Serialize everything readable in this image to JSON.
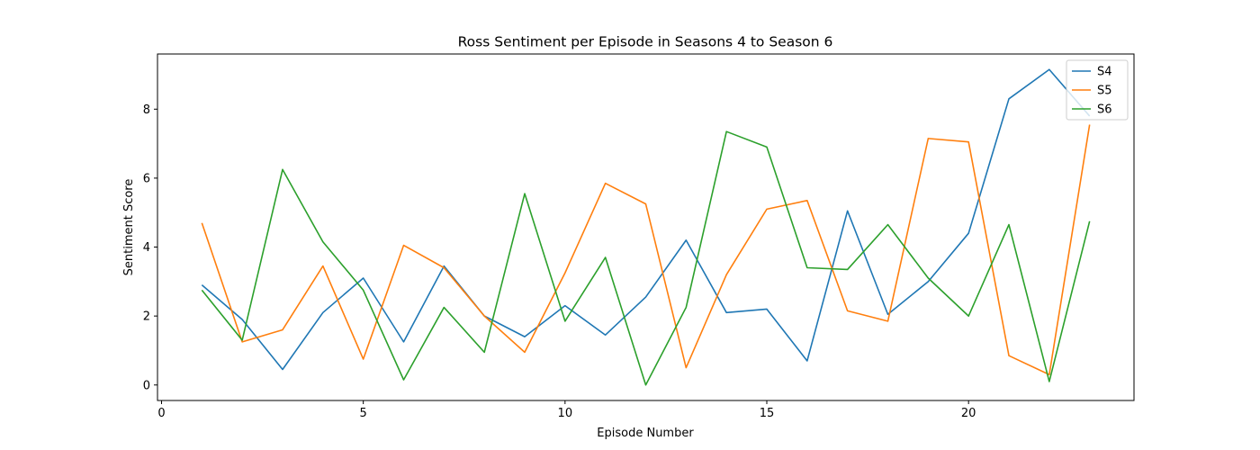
{
  "chart_data": {
    "type": "line",
    "title": "Ross Sentiment per Episode in Seasons 4 to Season 6",
    "xlabel": "Episode Number",
    "ylabel": "Sentiment Score",
    "xlim": [
      -0.1,
      24.1
    ],
    "ylim": [
      -0.45,
      9.6
    ],
    "xticks": [
      0,
      5,
      10,
      15,
      20
    ],
    "yticks": [
      0,
      2,
      4,
      6,
      8
    ],
    "grid": false,
    "legend_position": "top-right",
    "x": [
      1,
      2,
      3,
      4,
      5,
      6,
      7,
      8,
      9,
      10,
      11,
      12,
      13,
      14,
      15,
      16,
      17,
      18,
      19,
      20,
      21,
      22,
      23
    ],
    "series": [
      {
        "name": "S4",
        "color": "#1f77b4",
        "values": [
          2.9,
          1.9,
          0.45,
          2.1,
          3.1,
          1.25,
          3.45,
          2.0,
          1.4,
          2.3,
          1.45,
          2.55,
          4.2,
          2.1,
          2.2,
          0.7,
          5.05,
          2.05,
          3.0,
          4.4,
          8.3,
          9.15,
          7.8
        ]
      },
      {
        "name": "S5",
        "color": "#ff7f0e",
        "values": [
          4.7,
          1.25,
          1.6,
          3.45,
          0.75,
          4.05,
          3.4,
          2.0,
          0.95,
          3.25,
          5.85,
          5.25,
          0.5,
          3.2,
          5.1,
          5.35,
          2.15,
          1.85,
          7.15,
          7.05,
          0.85,
          0.3,
          7.55
        ]
      },
      {
        "name": "S6",
        "color": "#2ca02c",
        "values": [
          2.75,
          1.3,
          6.25,
          4.15,
          2.75,
          0.15,
          2.25,
          0.95,
          5.55,
          1.85,
          3.7,
          0.0,
          2.25,
          7.35,
          6.9,
          3.4,
          3.35,
          4.65,
          3.1,
          2.0,
          4.65,
          0.1,
          4.75
        ]
      }
    ]
  }
}
